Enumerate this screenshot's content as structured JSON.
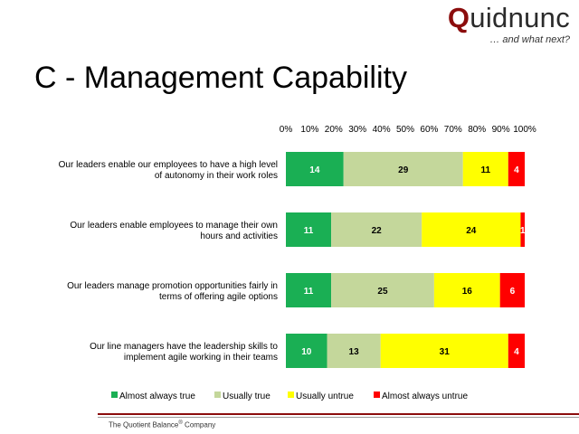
{
  "header": {
    "brand_initial": "Q",
    "brand_rest": "uidnunc",
    "tagline": "… and what next?",
    "title": "C - Management Capability"
  },
  "footer": {
    "company_prefix": "The Quotient Balance",
    "company_mark": "®",
    "company_suffix": " Company"
  },
  "chart_data": {
    "type": "bar",
    "orientation": "horizontal",
    "stacked": "percent",
    "xlim": [
      0,
      100
    ],
    "xticks": [
      "0%",
      "10%",
      "20%",
      "30%",
      "40%",
      "50%",
      "60%",
      "70%",
      "80%",
      "90%",
      "100%"
    ],
    "categories": [
      [
        "Our leaders enable our employees to have a high level",
        "of autonomy in their work roles"
      ],
      [
        "Our leaders enable employees to manage their own",
        "hours and activities"
      ],
      [
        "Our leaders manage promotion opportunities fairly in",
        "terms of offering agile options"
      ],
      [
        "Our line managers have the leadership skills to",
        "implement agile working in their teams"
      ]
    ],
    "series": [
      {
        "name": "Almost always true",
        "color": "#1aaf54",
        "label_color": "#ffffff",
        "values": [
          14,
          11,
          11,
          10
        ]
      },
      {
        "name": "Usually true",
        "color": "#c4d79b",
        "label_color": "#000000",
        "values": [
          29,
          22,
          25,
          13
        ]
      },
      {
        "name": "Usually untrue",
        "color": "#ffff00",
        "label_color": "#000000",
        "values": [
          11,
          24,
          16,
          31
        ]
      },
      {
        "name": "Almost always untrue",
        "color": "#ff0000",
        "label_color": "#ffffff",
        "values": [
          4,
          1,
          6,
          4
        ]
      }
    ],
    "legend_position": "bottom",
    "grid": false
  }
}
